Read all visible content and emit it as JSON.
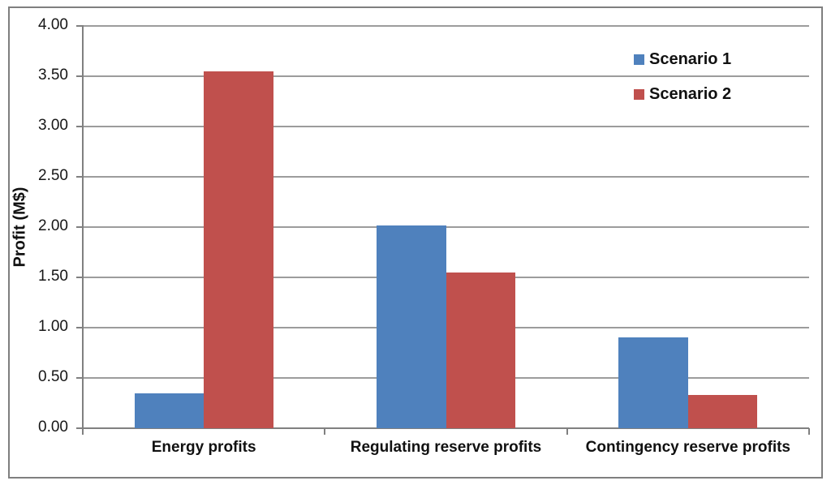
{
  "chart_data": {
    "type": "bar",
    "title": "",
    "xlabel": "",
    "ylabel": "Profit (M$)",
    "categories": [
      "Energy profits",
      "Regulating reserve profits",
      "Contingency reserve profits"
    ],
    "series": [
      {
        "name": "Scenario 1",
        "color": "#4f81bd",
        "values": [
          0.35,
          2.02,
          0.9
        ]
      },
      {
        "name": "Scenario 2",
        "color": "#c0504d",
        "values": [
          3.55,
          1.55,
          0.33
        ]
      }
    ],
    "ylim": [
      0,
      4
    ],
    "y_tick_step": 0.5,
    "y_tick_labels": [
      "0.00",
      "0.50",
      "1.00",
      "1.50",
      "2.00",
      "2.50",
      "3.00",
      "3.50",
      "4.00"
    ],
    "grid": "horizontal",
    "legend_position": "top-right"
  },
  "colors": {
    "series_blue": "#4f81bd",
    "series_red": "#c0504d",
    "gridline": "#9c9c9c",
    "axis": "#808080",
    "frame_border": "#7f7f7f",
    "text": "#111111"
  }
}
